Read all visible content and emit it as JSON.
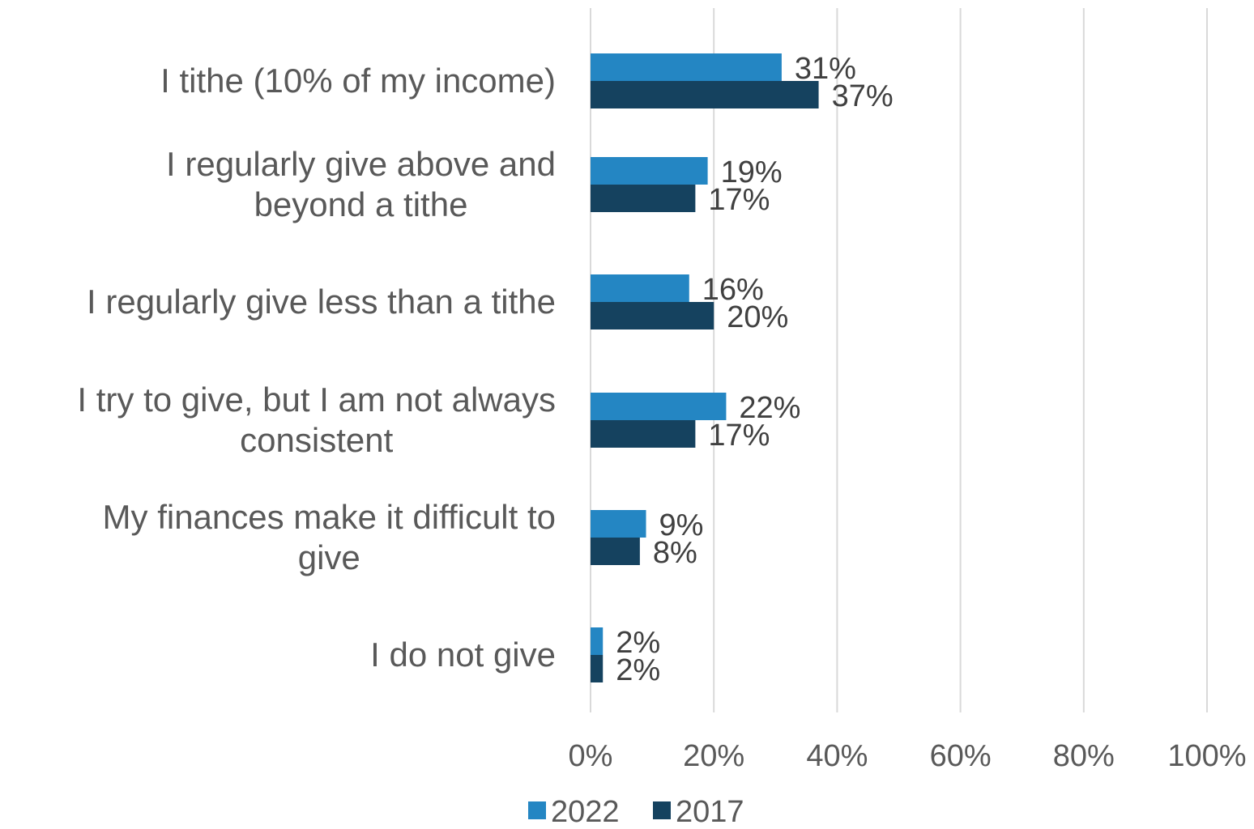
{
  "chart_data": {
    "type": "bar",
    "orientation": "horizontal",
    "categories": [
      [
        "I tithe (10% of my income)"
      ],
      [
        "I regularly give above and",
        "beyond a tithe"
      ],
      [
        "I regularly give less than a tithe"
      ],
      [
        "I try to give, but I am not always",
        "consistent"
      ],
      [
        "My finances make it difficult to",
        "give"
      ],
      [
        "I do not give"
      ]
    ],
    "series": [
      {
        "name": "2022",
        "color": "#2486C3",
        "values": [
          31,
          19,
          16,
          22,
          9,
          2
        ],
        "labels": [
          "31%",
          "19%",
          "16%",
          "22%",
          "9%",
          "2%"
        ]
      },
      {
        "name": "2017",
        "color": "#15425F",
        "values": [
          37,
          17,
          20,
          17,
          8,
          2
        ],
        "labels": [
          "37%",
          "17%",
          "20%",
          "17%",
          "8%",
          "2%"
        ]
      }
    ],
    "xlim": [
      0,
      100
    ],
    "ticks": [
      0,
      20,
      40,
      60,
      80,
      100
    ],
    "tick_labels": [
      "0%",
      "20%",
      "40%",
      "60%",
      "80%",
      "100%"
    ],
    "grid": true,
    "legend_position": "bottom"
  }
}
